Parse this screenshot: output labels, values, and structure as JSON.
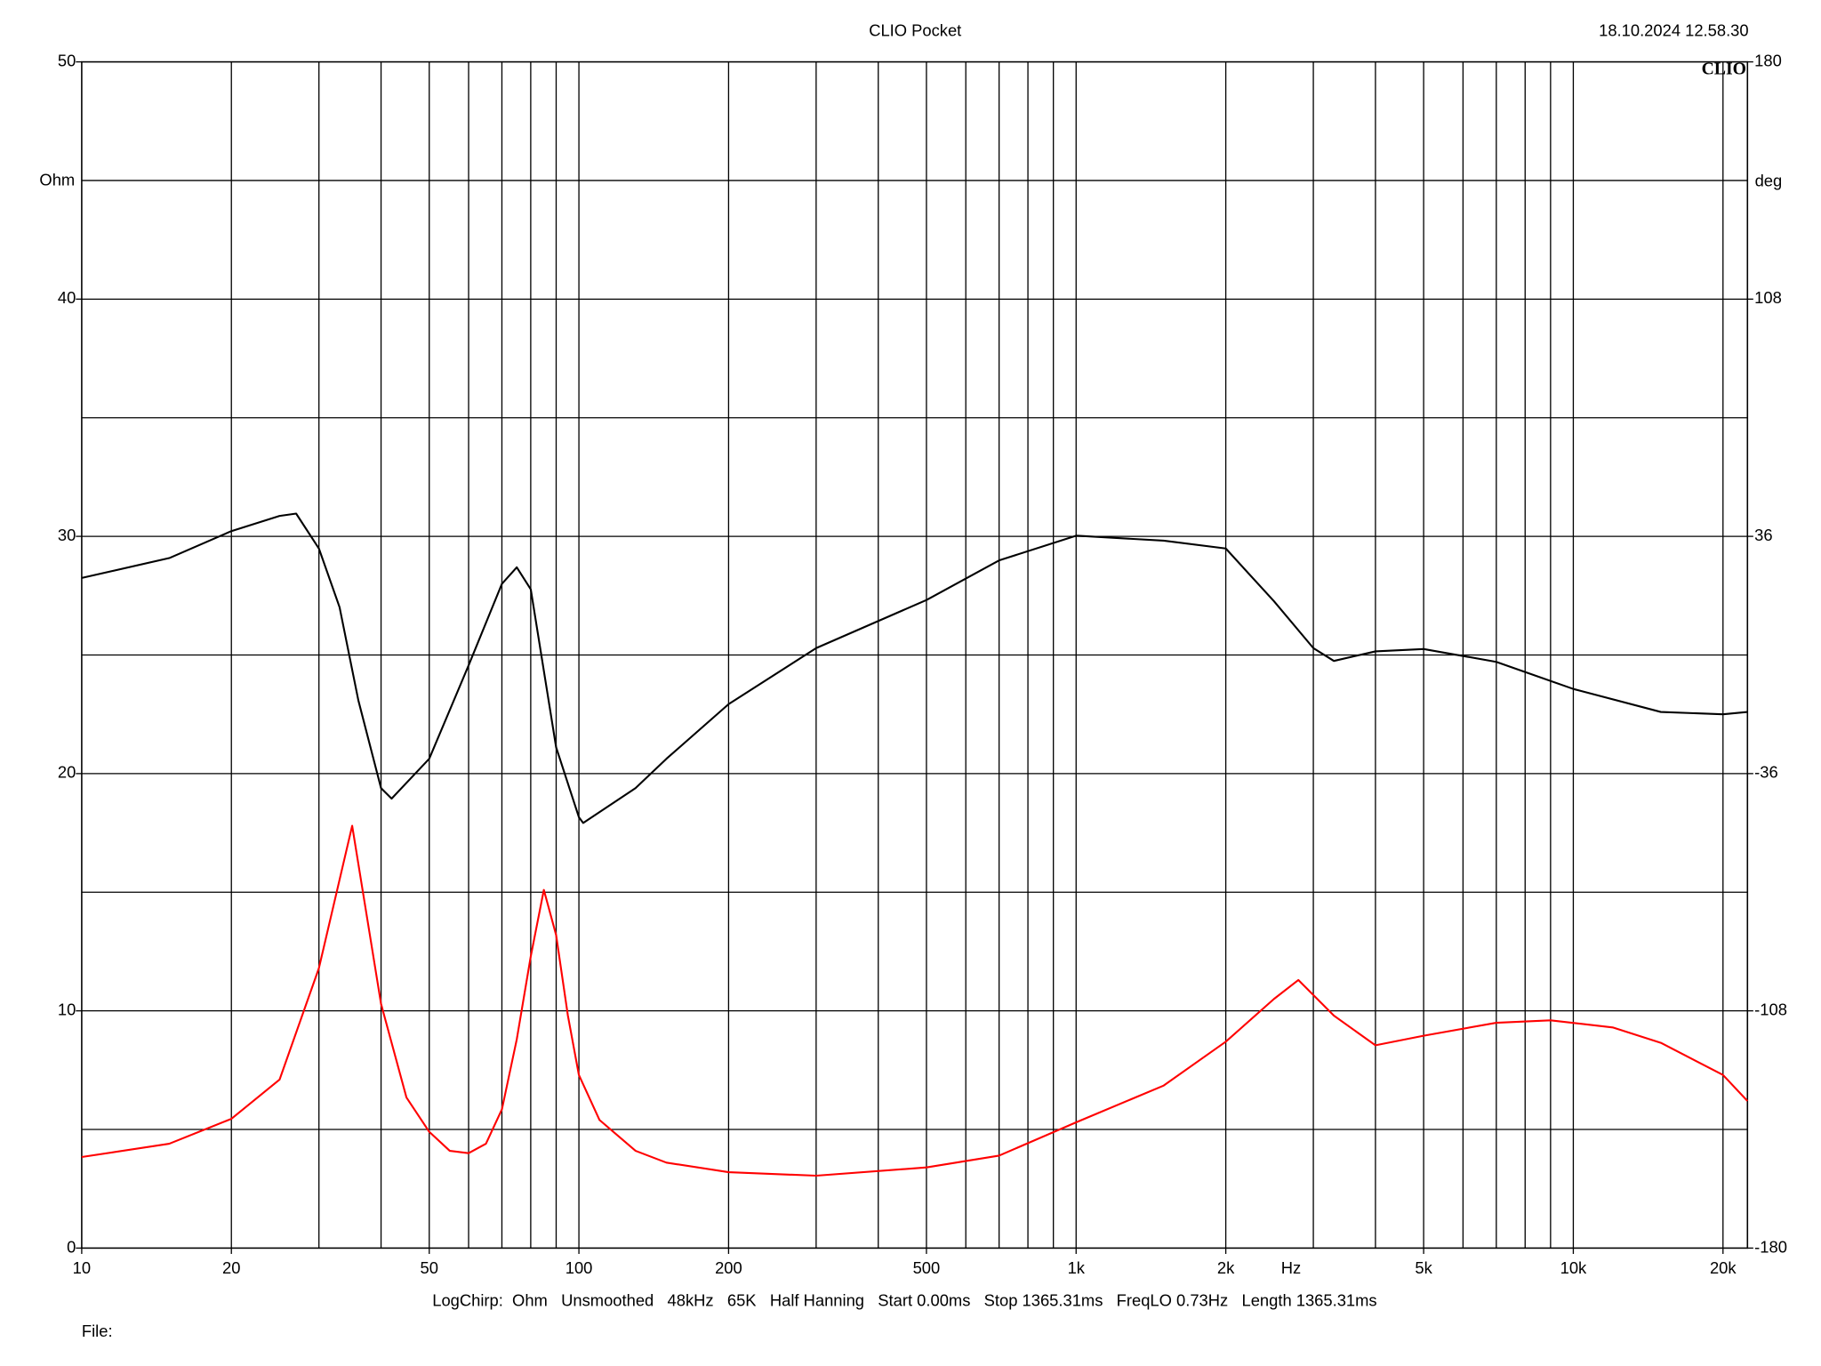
{
  "chart_data": {
    "type": "line",
    "title": "CLIO Pocket",
    "timestamp": "18.10.2024 12.58.30",
    "logo": "CLIO",
    "x_label": "Hz",
    "y_label": "Ohm",
    "y2_label": "deg",
    "footer": "LogChirp:  Ohm   Unsmoothed   48kHz   65K   Half Hanning   Start 0.00ms   Stop 1365.31ms   FreqLO 0.73Hz   Length 1365.31ms",
    "file_label": "File:",
    "x_log": true,
    "grid": true,
    "xlim": [
      10,
      22400
    ],
    "xticks": [
      10,
      20,
      50,
      100,
      200,
      500,
      {
        "value": 1000,
        "label": "1k"
      },
      {
        "value": 2000,
        "label": "2k"
      },
      {
        "value": 5000,
        "label": "5k"
      },
      {
        "value": 10000,
        "label": "10k"
      },
      {
        "value": 20000,
        "label": "20k"
      }
    ],
    "x_grid": [
      20,
      30,
      40,
      50,
      60,
      70,
      80,
      90,
      100,
      200,
      300,
      400,
      500,
      600,
      700,
      800,
      900,
      1000,
      2000,
      3000,
      4000,
      5000,
      6000,
      7000,
      8000,
      9000,
      10000,
      20000
    ],
    "ylim": [
      0,
      50
    ],
    "yticks": [
      0,
      10,
      20,
      30,
      40,
      50
    ],
    "y_grid": [
      5,
      10,
      15,
      20,
      25,
      30,
      35,
      40,
      45
    ],
    "y2lim": [
      -180,
      180
    ],
    "y2ticks": [
      -180,
      -108,
      -36,
      36,
      108,
      180
    ],
    "series": [
      {
        "color": "#ff0000",
        "x": [
          10,
          15,
          20,
          25,
          30,
          35,
          40,
          45,
          50,
          55,
          60,
          65,
          70,
          75,
          80,
          85,
          90,
          95,
          100,
          110,
          130,
          150,
          200,
          300,
          500,
          700,
          1000,
          1500,
          2000,
          2500,
          2800,
          3300,
          4000,
          5000,
          7000,
          9000,
          12000,
          15000,
          20000,
          22400
        ],
        "values": [
          3.84,
          4.4,
          5.45,
          7.1,
          11.8,
          17.8,
          10.3,
          6.35,
          4.9,
          4.1,
          4.0,
          4.4,
          5.85,
          8.8,
          12.3,
          15.1,
          13.2,
          9.8,
          7.3,
          5.4,
          4.1,
          3.6,
          3.2,
          3.05,
          3.4,
          3.9,
          5.3,
          6.85,
          8.7,
          10.5,
          11.3,
          9.8,
          8.55,
          8.95,
          9.5,
          9.6,
          9.3,
          8.65,
          7.3,
          6.2
        ]
      },
      {
        "color": "#000000",
        "axis": "y2",
        "x": [
          10,
          15,
          20,
          25,
          27,
          30,
          33,
          36,
          40,
          42,
          50,
          60,
          70,
          75,
          80,
          90,
          100,
          102,
          130,
          150,
          200,
          300,
          500,
          700,
          1000,
          1500,
          2000,
          2500,
          3000,
          3300,
          4000,
          5000,
          7000,
          10000,
          15000,
          20000,
          22400
        ],
        "values": [
          23.4,
          29.4,
          37.6,
          42.2,
          42.9,
          32.3,
          14.5,
          -13.8,
          -40.4,
          -43.6,
          -31.5,
          -3.2,
          21.6,
          26.6,
          19.9,
          -28,
          -49.2,
          -51,
          -40.4,
          -31.5,
          -14.9,
          2.1,
          16.7,
          28.7,
          36.2,
          34.7,
          32.3,
          16.3,
          2.1,
          -1.8,
          1.1,
          1.8,
          -2.1,
          -10.3,
          -17.3,
          -18,
          -17.3
        ]
      }
    ]
  }
}
